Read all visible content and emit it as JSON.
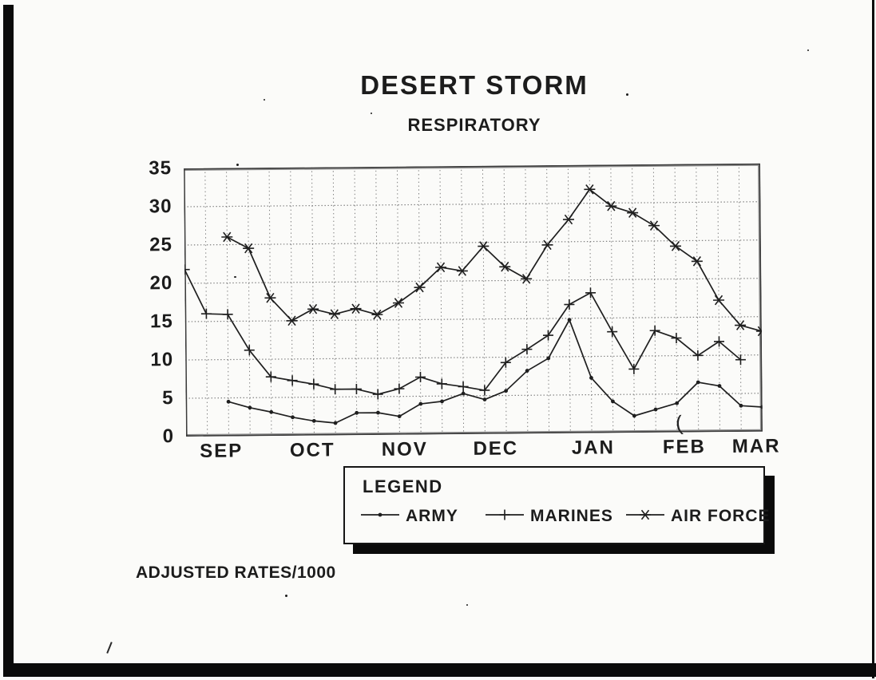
{
  "page": {
    "title": "DESERT STORM",
    "subtitle": "RESPIRATORY",
    "footnote": "ADJUSTED RATES/1000"
  },
  "legend": {
    "heading": "LEGEND",
    "entries": [
      {
        "label": "ARMY",
        "marker": "dot"
      },
      {
        "label": "MARINES",
        "marker": "plus"
      },
      {
        "label": "AIR FORCE",
        "marker": "asterisk"
      }
    ]
  },
  "chart_data": {
    "type": "line",
    "title": "DESERT STORM",
    "subtitle": "RESPIRATORY",
    "xlabel": "",
    "ylabel": "ADJUSTED RATES/1000",
    "ylim": [
      0,
      35
    ],
    "yticks": [
      0,
      5,
      10,
      15,
      20,
      25,
      30,
      35
    ],
    "x_unit": "week",
    "x_intervals": 27,
    "grid": "dotted, vertical line each week and horizontal line each 5 units",
    "legend_position": "below chart in framed box",
    "months": [
      {
        "label": "SEP",
        "pos": 0.061
      },
      {
        "label": "OCT",
        "pos": 0.219
      },
      {
        "label": "NOV",
        "pos": 0.379
      },
      {
        "label": "DEC",
        "pos": 0.537
      },
      {
        "label": "JAN",
        "pos": 0.706
      },
      {
        "label": "FEB",
        "pos": 0.864
      },
      {
        "label": "MAR",
        "pos": 0.989
      }
    ],
    "series": [
      {
        "name": "ARMY",
        "marker": "dot",
        "start_week": 2,
        "values": [
          4.5,
          3.7,
          3.1,
          2.4,
          1.9,
          1.6,
          2.9,
          2.9,
          2.4,
          4.0,
          4.3,
          5.3,
          4.5,
          5.6,
          8.2,
          9.8,
          14.8,
          7.2,
          4.1,
          2.2,
          3.0,
          3.8,
          6.5,
          6.0,
          3.4,
          3.2
        ]
      },
      {
        "name": "MARINES",
        "marker": "plus",
        "start_week": 0,
        "values": [
          21.8,
          16.0,
          15.9,
          11.2,
          7.7,
          7.2,
          6.7,
          6.0,
          6.0,
          5.3,
          6.0,
          7.5,
          6.6,
          6.2,
          5.7,
          9.3,
          11.0,
          12.8,
          16.8,
          18.3,
          13.2,
          8.3,
          13.3,
          12.3,
          10.0,
          11.8,
          9.4
        ]
      },
      {
        "name": "AIR FORCE",
        "marker": "asterisk",
        "start_week": 2,
        "values": [
          26.0,
          24.5,
          18.0,
          15.0,
          16.5,
          15.8,
          16.5,
          15.7,
          17.2,
          19.2,
          21.8,
          21.3,
          24.5,
          21.8,
          20.2,
          24.6,
          27.9,
          31.8,
          29.6,
          28.7,
          27.0,
          24.3,
          22.3,
          17.2,
          13.9,
          13.1
        ]
      }
    ]
  },
  "colors": {
    "ink": "#1f1f1f",
    "grid": "#7d7d7d",
    "frame": "#3a3a3a",
    "frame_gray": "#909090",
    "paper": "#fbfbf9",
    "shadow": "#0a0a0a"
  }
}
